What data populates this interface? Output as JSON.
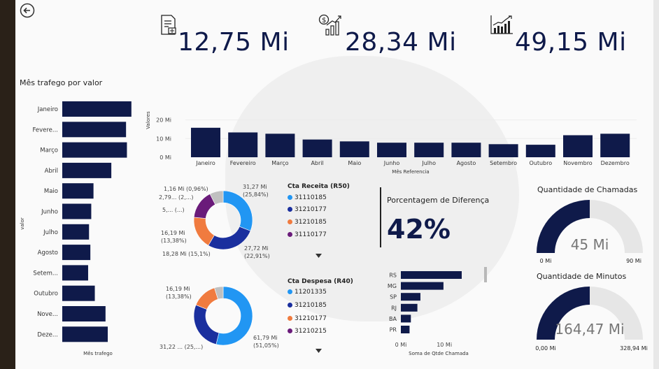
{
  "colors": {
    "navy": "#0f1a4a",
    "gauge_track": "#e6e6e6",
    "blue": "#2196f3",
    "darkblue": "#1a2f9e",
    "orange": "#f07b3f",
    "purple": "#6a1b7a"
  },
  "kpis": [
    {
      "icon": "document-icon",
      "value": "12,75 Mi"
    },
    {
      "icon": "money-growth-icon",
      "value": "28,34 Mi"
    },
    {
      "icon": "trend-chart-icon",
      "value": "49,15 Mi"
    }
  ],
  "percent_card": {
    "label": "Porcentagem de Diferença",
    "value": "42%"
  },
  "gauges": [
    {
      "title": "Quantidade de Chamadas",
      "value_label": "45 Mi",
      "min_label": "0 Mi",
      "max_label": "90 Mi",
      "value": 45,
      "min": 0,
      "max": 90
    },
    {
      "title": "Quantidade de Minutos",
      "value_label": "164,47 Mi",
      "min_label": "0,00 Mi",
      "max_label": "328,94 Mi",
      "value": 164.47,
      "min": 0,
      "max": 328.94
    }
  ],
  "donut_receita": {
    "legend_title": "Cta Receita (R50)",
    "legend": [
      {
        "label": "31110185",
        "color": "#2196f3"
      },
      {
        "label": "31210177",
        "color": "#1a2f9e"
      },
      {
        "label": "31210185",
        "color": "#f07b3f"
      },
      {
        "label": "31110177",
        "color": "#6a1b7a"
      }
    ],
    "annotations": [
      "1,16 Mi (0,96%)",
      "2,79... (2,...)",
      "5,... (...)",
      "16,19 Mi",
      "(13,38%)",
      "18,28 Mi (15,1%)",
      "31,27 Mi",
      "(25,84%)",
      "27,72 Mi",
      "(22,91%)"
    ]
  },
  "donut_despesa": {
    "legend_title": "Cta Despesa (R40)",
    "legend": [
      {
        "label": "11201335",
        "color": "#2196f3"
      },
      {
        "label": "31210185",
        "color": "#1a2f9e"
      },
      {
        "label": "31210177",
        "color": "#f07b3f"
      },
      {
        "label": "31210215",
        "color": "#6a1b7a"
      }
    ],
    "annotations": [
      "16,19 Mi",
      "(13,38%)",
      "31,22 ... (25,...)",
      "61,79 Mi",
      "(51,05%)"
    ]
  },
  "chart_data": [
    {
      "type": "bar",
      "orientation": "horizontal",
      "title": "Mês trafego por valor",
      "xlabel": "Mês trafego",
      "ylabel": "valor",
      "categories": [
        "Janeiro",
        "Fevere...",
        "Março",
        "Abril",
        "Maio",
        "Junho",
        "Julho",
        "Agosto",
        "Setem...",
        "Outubro",
        "Nove...",
        "Deze..."
      ],
      "values": [
        15.5,
        14.3,
        14.5,
        11.0,
        7.0,
        6.5,
        6.0,
        6.3,
        5.8,
        7.3,
        9.7,
        10.2
      ]
    },
    {
      "type": "bar",
      "title": "",
      "xlabel": "Mês Referencia",
      "ylabel": "Valores",
      "y_ticks": [
        "20 Mi",
        "10 Mi",
        "0 Mi"
      ],
      "ylim": [
        0,
        20
      ],
      "categories": [
        "Janeiro",
        "Fevereiro",
        "Março",
        "Abril",
        "Maio",
        "Junho",
        "Julho",
        "Agosto",
        "Setembro",
        "Outubro",
        "Novembro",
        "Dezembro"
      ],
      "values": [
        15.8,
        13.3,
        12.6,
        9.5,
        8.5,
        7.8,
        7.8,
        7.8,
        7.0,
        6.7,
        11.8,
        12.6
      ]
    },
    {
      "type": "pie",
      "title": "",
      "legend_title": "Cta Receita (R50)",
      "categories": [
        "31110185",
        "31210177",
        "31210185",
        "31110177",
        "outros"
      ],
      "values": [
        31.27,
        27.72,
        18.28,
        16.19,
        7.5
      ],
      "colors": [
        "#2196f3",
        "#1a2f9e",
        "#f07b3f",
        "#6a1b7a",
        "#c0c0c0"
      ]
    },
    {
      "type": "pie",
      "title": "",
      "legend_title": "Cta Despesa (R40)",
      "categories": [
        "11201335",
        "31210185",
        "31210177",
        "outros"
      ],
      "values": [
        61.79,
        31.22,
        16.19,
        5.5
      ],
      "colors": [
        "#2196f3",
        "#1a2f9e",
        "#f07b3f",
        "#c0c0c0"
      ]
    },
    {
      "type": "bar",
      "orientation": "horizontal",
      "title": "",
      "xlabel": "Soma de Qtde Chamada",
      "categories": [
        "RS",
        "MG",
        "SP",
        "RJ",
        "BA",
        "PR"
      ],
      "values": [
        14.0,
        9.8,
        4.5,
        3.8,
        2.3,
        2.0
      ],
      "x_ticks": [
        "0 Mi",
        "10 Mi"
      ],
      "xlim": [
        0,
        14
      ]
    }
  ]
}
